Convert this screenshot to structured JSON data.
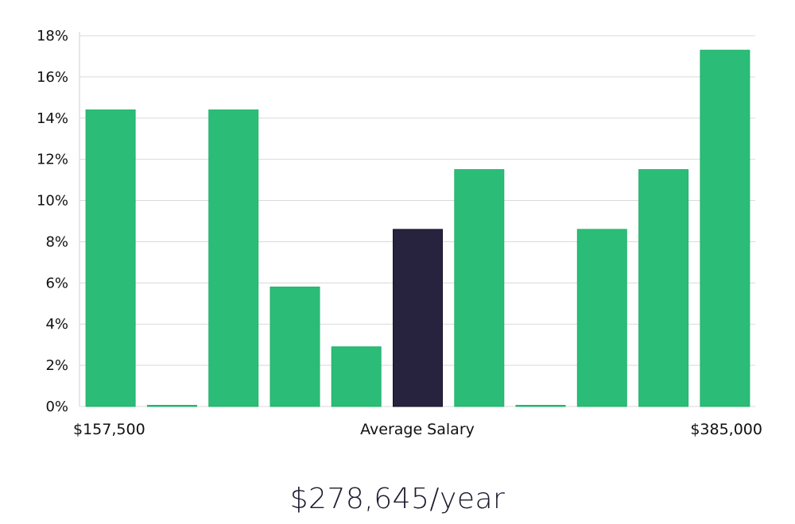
{
  "chart_data": {
    "type": "bar",
    "title": "",
    "xlabel": "Average Salary",
    "ylabel": "",
    "ylim": [
      0,
      18
    ],
    "y_ticks": [
      "0%",
      "2%",
      "4%",
      "6%",
      "8%",
      "10%",
      "12%",
      "14%",
      "16%",
      "18%"
    ],
    "y_tick_values": [
      0,
      2,
      4,
      6,
      8,
      10,
      12,
      14,
      16,
      18
    ],
    "x_min_label": "$157,500",
    "x_max_label": "$385,000",
    "values": [
      14.4,
      0,
      14.4,
      5.8,
      2.9,
      8.6,
      11.5,
      0,
      8.6,
      11.5,
      17.3
    ],
    "highlight_index": 5,
    "grid": true,
    "colors": {
      "bar": "#2bbd77",
      "highlight": "#27233f",
      "grid": "#d9d9d9",
      "axis": "#cfcfcf"
    }
  },
  "salary_summary": "$278,645/year"
}
